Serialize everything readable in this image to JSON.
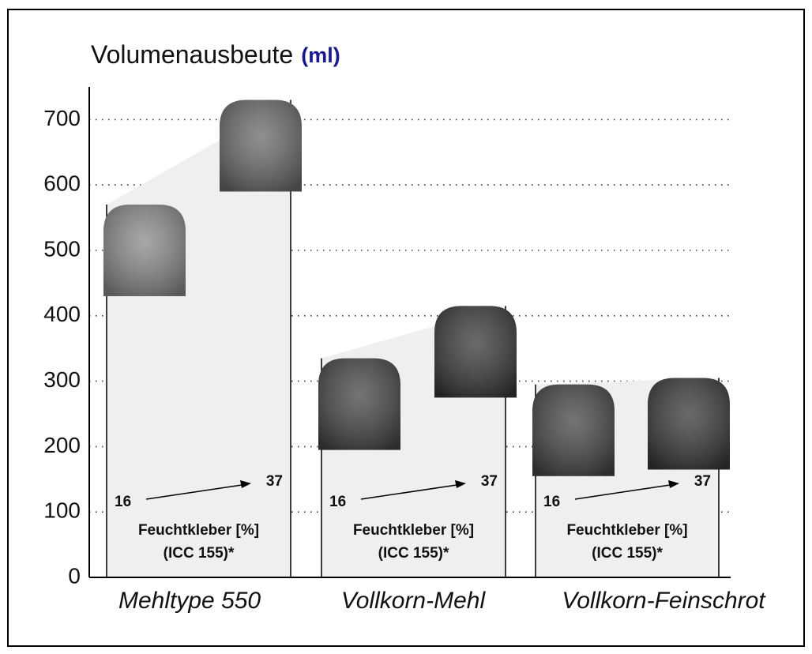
{
  "chart_data": {
    "type": "range",
    "title": "Volumenausbeute",
    "unit": "(ml)",
    "categories": [
      "Mehltype 550",
      "Vollkorn-Mehl",
      "Vollkorn-Feinschrot"
    ],
    "series": [
      {
        "name": "16",
        "color": "#8a8a8a",
        "values": [
          570,
          335,
          295
        ]
      },
      {
        "name": "37",
        "color": "#6a6a6a",
        "values": [
          730,
          415,
          305
        ]
      }
    ],
    "annotation": [
      "Feuchtkleber [%]",
      "(ICC 155)*"
    ],
    "color": "#efefef",
    "ylim": [
      0,
      750
    ],
    "yticks": [
      0,
      100,
      200,
      300,
      400,
      500,
      600,
      700
    ],
    "grid": true
  }
}
